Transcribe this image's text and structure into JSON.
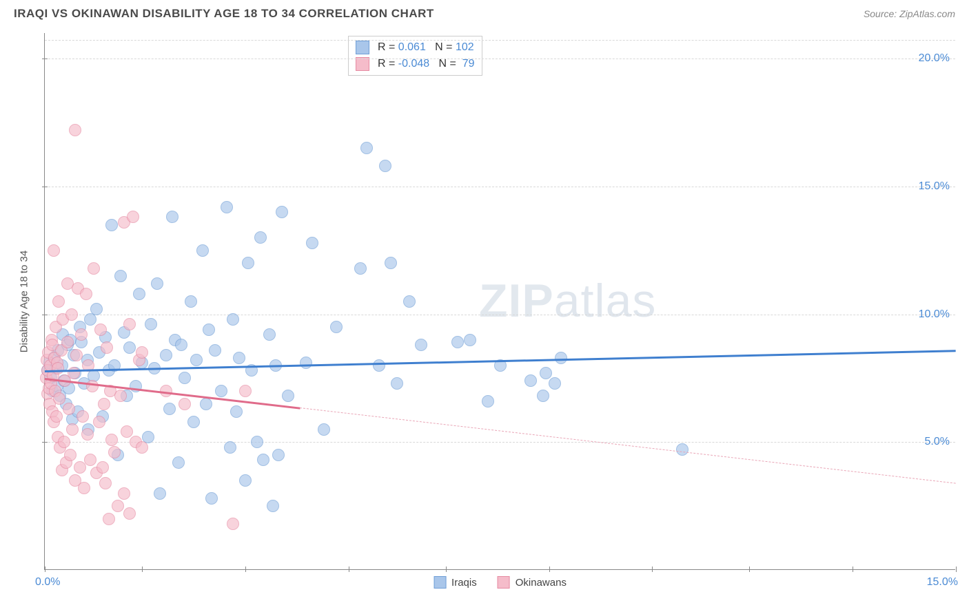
{
  "header": {
    "title": "IRAQI VS OKINAWAN DISABILITY AGE 18 TO 34 CORRELATION CHART",
    "source": "Source: ZipAtlas.com"
  },
  "chart": {
    "type": "scatter",
    "ylabel": "Disability Age 18 to 34",
    "xlim": [
      0,
      15
    ],
    "ylim": [
      0,
      21
    ],
    "y_ticks": [
      5,
      10,
      15,
      20
    ],
    "y_tick_labels": [
      "5.0%",
      "10.0%",
      "15.0%",
      "20.0%"
    ],
    "x_tick_positions": [
      0,
      1.6,
      3.3,
      5,
      6.6,
      8.3,
      10,
      11.6,
      13.3,
      15
    ],
    "x_origin_label": "0.0%",
    "x_max_label": "15.0%",
    "grid_color": "#d8d8d8",
    "axis_color": "#888888",
    "axis_value_color": "#4a8ad4",
    "watermark": "ZIPatlas",
    "watermark_color": "#cdd7e2",
    "background_color": "#ffffff",
    "series": [
      {
        "name": "Iraqis",
        "color_fill": "#a9c6ea",
        "color_stroke": "#6f9ed6",
        "marker_size": 18,
        "marker_opacity": 0.65,
        "R": "0.061",
        "N": "102",
        "trend": {
          "x1": 0,
          "y1": 7.8,
          "x2": 15,
          "y2": 8.6,
          "solid_until_x": 15,
          "color": "#3f7fcf",
          "width": 2.5
        },
        "points": [
          [
            0.05,
            7.8
          ],
          [
            0.08,
            8.1
          ],
          [
            0.1,
            7.5
          ],
          [
            0.12,
            7.0
          ],
          [
            0.15,
            8.3
          ],
          [
            0.18,
            7.9
          ],
          [
            0.2,
            7.2
          ],
          [
            0.22,
            8.6
          ],
          [
            0.25,
            6.8
          ],
          [
            0.28,
            8.0
          ],
          [
            0.3,
            9.2
          ],
          [
            0.32,
            7.4
          ],
          [
            0.35,
            6.5
          ],
          [
            0.38,
            8.8
          ],
          [
            0.4,
            7.1
          ],
          [
            0.42,
            9.0
          ],
          [
            0.45,
            5.9
          ],
          [
            0.48,
            8.4
          ],
          [
            0.5,
            7.7
          ],
          [
            0.55,
            6.2
          ],
          [
            0.58,
            9.5
          ],
          [
            0.6,
            8.9
          ],
          [
            0.65,
            7.3
          ],
          [
            0.7,
            8.2
          ],
          [
            0.72,
            5.5
          ],
          [
            0.75,
            9.8
          ],
          [
            0.8,
            7.6
          ],
          [
            0.85,
            10.2
          ],
          [
            0.9,
            8.5
          ],
          [
            0.95,
            6.0
          ],
          [
            1.0,
            9.1
          ],
          [
            1.05,
            7.8
          ],
          [
            1.1,
            13.5
          ],
          [
            1.15,
            8.0
          ],
          [
            1.2,
            4.5
          ],
          [
            1.25,
            11.5
          ],
          [
            1.3,
            9.3
          ],
          [
            1.35,
            6.8
          ],
          [
            1.4,
            8.7
          ],
          [
            1.5,
            7.2
          ],
          [
            1.55,
            10.8
          ],
          [
            1.6,
            8.1
          ],
          [
            1.7,
            5.2
          ],
          [
            1.75,
            9.6
          ],
          [
            1.8,
            7.9
          ],
          [
            1.85,
            11.2
          ],
          [
            1.9,
            3.0
          ],
          [
            2.0,
            8.4
          ],
          [
            2.05,
            6.3
          ],
          [
            2.1,
            13.8
          ],
          [
            2.15,
            9.0
          ],
          [
            2.2,
            4.2
          ],
          [
            2.25,
            8.8
          ],
          [
            2.3,
            7.5
          ],
          [
            2.4,
            10.5
          ],
          [
            2.45,
            5.8
          ],
          [
            2.5,
            8.2
          ],
          [
            2.6,
            12.5
          ],
          [
            2.65,
            6.5
          ],
          [
            2.7,
            9.4
          ],
          [
            2.75,
            2.8
          ],
          [
            2.8,
            8.6
          ],
          [
            2.9,
            7.0
          ],
          [
            3.0,
            14.2
          ],
          [
            3.05,
            4.8
          ],
          [
            3.1,
            9.8
          ],
          [
            3.15,
            6.2
          ],
          [
            3.2,
            8.3
          ],
          [
            3.3,
            3.5
          ],
          [
            3.35,
            12.0
          ],
          [
            3.4,
            7.8
          ],
          [
            3.5,
            5.0
          ],
          [
            3.55,
            13.0
          ],
          [
            3.6,
            4.3
          ],
          [
            3.7,
            9.2
          ],
          [
            3.75,
            2.5
          ],
          [
            3.8,
            8.0
          ],
          [
            3.85,
            4.5
          ],
          [
            3.9,
            14.0
          ],
          [
            4.0,
            6.8
          ],
          [
            4.3,
            8.1
          ],
          [
            4.4,
            12.8
          ],
          [
            4.6,
            5.5
          ],
          [
            4.8,
            9.5
          ],
          [
            5.2,
            11.8
          ],
          [
            5.3,
            16.5
          ],
          [
            5.5,
            8.0
          ],
          [
            5.6,
            15.8
          ],
          [
            5.7,
            12.0
          ],
          [
            5.8,
            7.3
          ],
          [
            6.0,
            10.5
          ],
          [
            6.2,
            8.8
          ],
          [
            6.8,
            8.9
          ],
          [
            7.0,
            9.0
          ],
          [
            7.3,
            6.6
          ],
          [
            7.5,
            8.0
          ],
          [
            8.0,
            7.4
          ],
          [
            8.2,
            6.8
          ],
          [
            8.25,
            7.7
          ],
          [
            8.4,
            7.3
          ],
          [
            8.5,
            8.3
          ],
          [
            10.5,
            4.7
          ]
        ]
      },
      {
        "name": "Okinawans",
        "color_fill": "#f5bcca",
        "color_stroke": "#e68aa2",
        "marker_size": 18,
        "marker_opacity": 0.65,
        "R": "-0.048",
        "N": "79",
        "trend": {
          "x1": 0,
          "y1": 7.5,
          "x2": 15,
          "y2": 3.4,
          "solid_until_x": 4.2,
          "color": "#e06b8a",
          "width": 2.5,
          "dash_color": "#e9a5b6"
        },
        "points": [
          [
            0.02,
            7.5
          ],
          [
            0.03,
            8.2
          ],
          [
            0.04,
            6.9
          ],
          [
            0.05,
            7.8
          ],
          [
            0.06,
            8.5
          ],
          [
            0.07,
            7.1
          ],
          [
            0.08,
            6.5
          ],
          [
            0.09,
            8.0
          ],
          [
            0.1,
            7.3
          ],
          [
            0.11,
            9.0
          ],
          [
            0.12,
            6.2
          ],
          [
            0.13,
            8.8
          ],
          [
            0.14,
            7.6
          ],
          [
            0.15,
            5.8
          ],
          [
            0.16,
            8.3
          ],
          [
            0.17,
            7.0
          ],
          [
            0.18,
            9.5
          ],
          [
            0.19,
            6.0
          ],
          [
            0.2,
            8.1
          ],
          [
            0.21,
            5.2
          ],
          [
            0.22,
            7.9
          ],
          [
            0.23,
            10.5
          ],
          [
            0.24,
            6.7
          ],
          [
            0.25,
            4.8
          ],
          [
            0.27,
            8.6
          ],
          [
            0.28,
            3.9
          ],
          [
            0.3,
            9.8
          ],
          [
            0.32,
            5.0
          ],
          [
            0.33,
            7.4
          ],
          [
            0.35,
            4.2
          ],
          [
            0.37,
            8.9
          ],
          [
            0.38,
            11.2
          ],
          [
            0.4,
            6.3
          ],
          [
            0.42,
            4.5
          ],
          [
            0.44,
            10.0
          ],
          [
            0.45,
            5.5
          ],
          [
            0.48,
            7.7
          ],
          [
            0.5,
            3.5
          ],
          [
            0.52,
            8.4
          ],
          [
            0.55,
            11.0
          ],
          [
            0.58,
            4.0
          ],
          [
            0.6,
            9.2
          ],
          [
            0.62,
            6.0
          ],
          [
            0.65,
            3.2
          ],
          [
            0.68,
            10.8
          ],
          [
            0.7,
            5.3
          ],
          [
            0.72,
            8.0
          ],
          [
            0.75,
            4.3
          ],
          [
            0.78,
            7.2
          ],
          [
            0.8,
            11.8
          ],
          [
            0.85,
            3.8
          ],
          [
            0.5,
            17.2
          ],
          [
            0.9,
            5.8
          ],
          [
            0.92,
            9.4
          ],
          [
            0.95,
            4.0
          ],
          [
            0.98,
            6.5
          ],
          [
            1.0,
            3.4
          ],
          [
            1.02,
            8.7
          ],
          [
            1.05,
            2.0
          ],
          [
            1.08,
            7.0
          ],
          [
            1.1,
            5.1
          ],
          [
            1.15,
            4.6
          ],
          [
            1.2,
            2.5
          ],
          [
            1.25,
            6.8
          ],
          [
            1.3,
            3.0
          ],
          [
            1.35,
            5.4
          ],
          [
            1.4,
            2.2
          ],
          [
            0.15,
            12.5
          ],
          [
            1.3,
            13.6
          ],
          [
            1.45,
            13.8
          ],
          [
            1.5,
            5.0
          ],
          [
            1.55,
            8.2
          ],
          [
            1.4,
            9.6
          ],
          [
            1.6,
            4.8
          ],
          [
            1.6,
            8.5
          ],
          [
            2.0,
            7.0
          ],
          [
            2.3,
            6.5
          ],
          [
            3.1,
            1.8
          ],
          [
            3.3,
            7.0
          ]
        ]
      }
    ],
    "legend_bottom": [
      {
        "label": "Iraqis",
        "fill": "#a9c6ea",
        "stroke": "#6f9ed6"
      },
      {
        "label": "Okinawans",
        "fill": "#f5bcca",
        "stroke": "#e68aa2"
      }
    ]
  }
}
